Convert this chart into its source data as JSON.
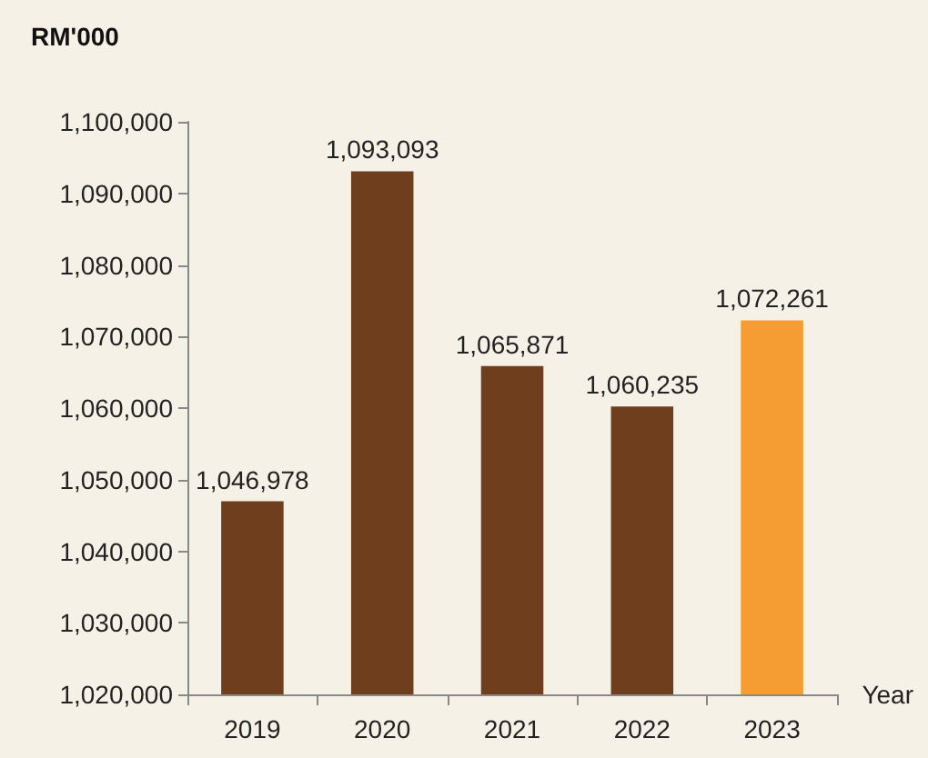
{
  "chart_data": {
    "type": "bar",
    "ylabel": "RM'000",
    "xlabel": "Year",
    "categories": [
      "2019",
      "2020",
      "2021",
      "2022",
      "2023"
    ],
    "values": [
      1046978,
      1093093,
      1065871,
      1060235,
      1072261
    ],
    "value_labels": [
      "1,046,978",
      "1,093,093",
      "1,065,871",
      "1,060,235",
      "1,072,261"
    ],
    "colors": [
      "#6f3f1d",
      "#6f3f1d",
      "#6f3f1d",
      "#6f3f1d",
      "#f59d32"
    ],
    "ylim": [
      1020000,
      1100000
    ],
    "yticks": [
      {
        "value": 1020000,
        "label": "1,020,000"
      },
      {
        "value": 1030000,
        "label": "1,030,000"
      },
      {
        "value": 1040000,
        "label": "1,040,000"
      },
      {
        "value": 1050000,
        "label": "1,050,000"
      },
      {
        "value": 1060000,
        "label": "1,060,000"
      },
      {
        "value": 1070000,
        "label": "1,070,000"
      },
      {
        "value": 1080000,
        "label": "1,080,000"
      },
      {
        "value": 1090000,
        "label": "1,090,000"
      },
      {
        "value": 1100000,
        "label": "1,100,000"
      }
    ],
    "grid": false
  }
}
